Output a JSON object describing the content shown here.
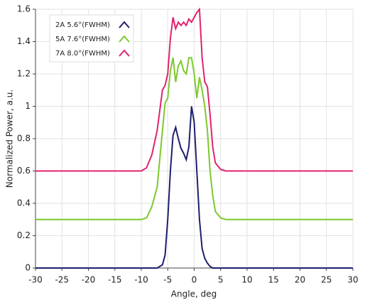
{
  "chart_data": {
    "type": "line",
    "xlabel": "Angle, deg",
    "ylabel": "Normalized Power, a.u.",
    "x": [
      -30,
      -10,
      -9,
      -8,
      -7,
      -6,
      -5.5,
      -5,
      -4.5,
      -4,
      -3.5,
      -3,
      -2.5,
      -2,
      -1.5,
      -1,
      -0.5,
      0,
      0.5,
      1,
      1.5,
      2,
      2.5,
      3,
      3.5,
      4,
      5,
      6,
      10,
      30
    ],
    "series": [
      {
        "name": "2A 5.6°(FWHM)",
        "color": "#1e1f6e",
        "values": [
          0,
          0,
          0,
          0,
          0,
          0.02,
          0.08,
          0.3,
          0.6,
          0.82,
          0.87,
          0.8,
          0.74,
          0.71,
          0.67,
          0.75,
          1.0,
          0.9,
          0.6,
          0.3,
          0.12,
          0.06,
          0.03,
          0.01,
          0,
          0,
          0,
          0,
          0,
          0
        ]
      },
      {
        "name": "5A 7.6°(FWHM)",
        "color": "#7cc92c",
        "values": [
          0.3,
          0.3,
          0.31,
          0.38,
          0.5,
          0.85,
          1.02,
          1.05,
          1.22,
          1.3,
          1.15,
          1.25,
          1.28,
          1.22,
          1.2,
          1.3,
          1.3,
          1.2,
          1.05,
          1.18,
          1.1,
          1.0,
          0.85,
          0.6,
          0.45,
          0.35,
          0.31,
          0.3,
          0.3,
          0.3
        ]
      },
      {
        "name": "7A 8.0°(FWHM)",
        "color": "#e0236e",
        "values": [
          0.6,
          0.6,
          0.62,
          0.7,
          0.85,
          1.1,
          1.13,
          1.2,
          1.42,
          1.55,
          1.48,
          1.52,
          1.5,
          1.52,
          1.5,
          1.54,
          1.52,
          1.55,
          1.58,
          1.6,
          1.3,
          1.15,
          1.12,
          0.95,
          0.75,
          0.65,
          0.61,
          0.6,
          0.6,
          0.6
        ]
      }
    ],
    "xlim": [
      -30,
      30
    ],
    "xticks": [
      -30,
      -25,
      -20,
      -15,
      -10,
      -5,
      0,
      5,
      10,
      15,
      20,
      25,
      30
    ],
    "ylim": [
      0,
      1.6
    ],
    "yticks": [
      0,
      0.2,
      0.4,
      0.6,
      0.8,
      1,
      1.2,
      1.4,
      1.6
    ],
    "grid": true,
    "legend": "upper left"
  }
}
